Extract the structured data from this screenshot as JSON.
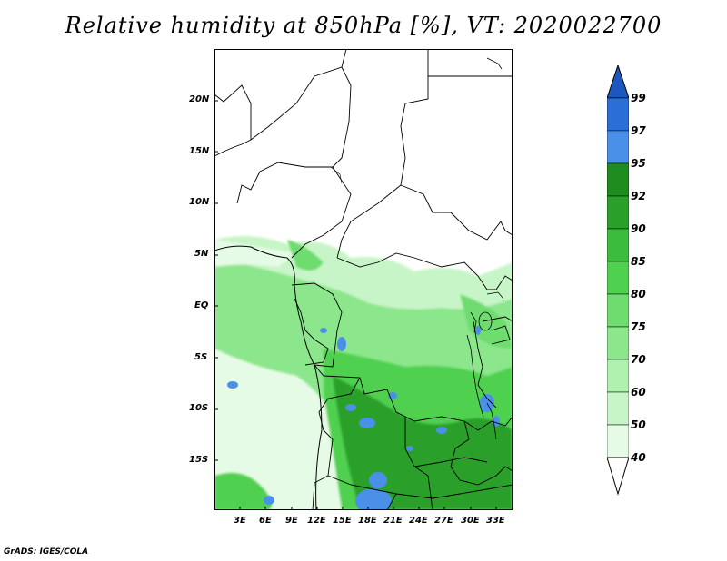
{
  "title": "Relative humidity at 850hPa [%], VT: 2020022700",
  "credit": "GrADS: IGES/COLA",
  "lat_labels": [
    "20N",
    "15N",
    "10N",
    "5N",
    "EQ",
    "5S",
    "10S",
    "15S"
  ],
  "lon_labels": [
    "3E",
    "6E",
    "9E",
    "12E",
    "15E",
    "18E",
    "21E",
    "24E",
    "27E",
    "30E",
    "33E"
  ],
  "colorbar": {
    "levels": [
      "40",
      "50",
      "60",
      "70",
      "75",
      "80",
      "85",
      "90",
      "92",
      "95",
      "97",
      "99"
    ],
    "colors": [
      "#ffffff",
      "#e6fbe6",
      "#c8f5c8",
      "#aef0ae",
      "#8ce68c",
      "#6edc6e",
      "#4fd04f",
      "#3cbc3c",
      "#2aa02a",
      "#1e8c1e",
      "#4a90e8",
      "#2a6ed8",
      "#1e56c0"
    ]
  }
}
